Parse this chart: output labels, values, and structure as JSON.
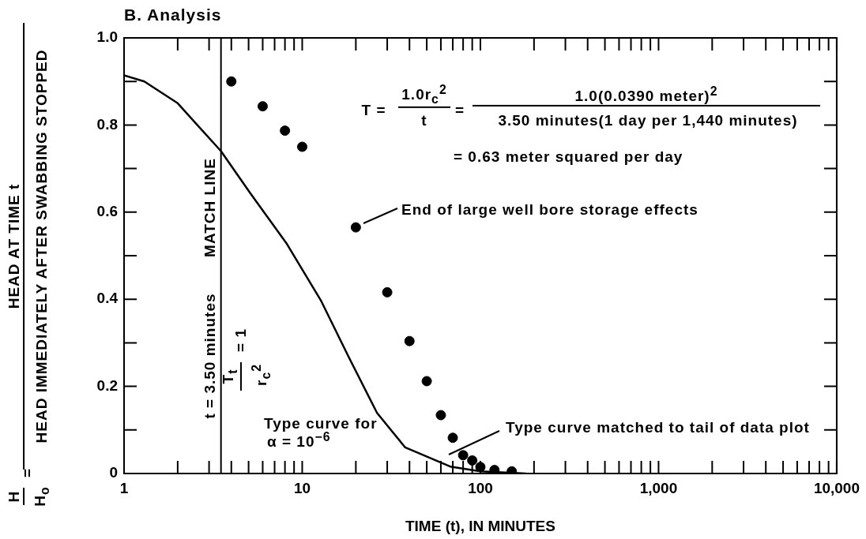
{
  "chart_data": {
    "type": "scatter",
    "title": "B. Analysis",
    "xlabel": "TIME (t), IN MINUTES",
    "log": "x",
    "grid": false,
    "legend": false,
    "xlim": [
      1,
      10000
    ],
    "xticks": [
      1,
      {
        "value": 2,
        "label": null
      },
      {
        "value": 3,
        "label": null
      },
      {
        "value": 4,
        "label": null
      },
      {
        "value": 5,
        "label": null
      },
      {
        "value": 6,
        "label": null
      },
      {
        "value": 7,
        "label": null
      },
      {
        "value": 8,
        "label": null
      },
      {
        "value": 9,
        "label": null
      },
      10,
      {
        "value": 20,
        "label": null
      },
      {
        "value": 30,
        "label": null
      },
      {
        "value": 40,
        "label": null
      },
      {
        "value": 50,
        "label": null
      },
      {
        "value": 60,
        "label": null
      },
      {
        "value": 70,
        "label": null
      },
      {
        "value": 80,
        "label": null
      },
      {
        "value": 90,
        "label": null
      },
      100,
      {
        "value": 200,
        "label": null
      },
      {
        "value": 300,
        "label": null
      },
      {
        "value": 400,
        "label": null
      },
      {
        "value": 500,
        "label": null
      },
      {
        "value": 600,
        "label": null
      },
      {
        "value": 700,
        "label": null
      },
      {
        "value": 800,
        "label": null
      },
      {
        "value": 900,
        "label": null
      },
      {
        "value": 1000,
        "label": "1,000"
      },
      {
        "value": 2000,
        "label": null
      },
      {
        "value": 3000,
        "label": null
      },
      {
        "value": 4000,
        "label": null
      },
      {
        "value": 5000,
        "label": null
      },
      {
        "value": 6000,
        "label": null
      },
      {
        "value": 7000,
        "label": null
      },
      {
        "value": 8000,
        "label": null
      },
      {
        "value": 9000,
        "label": null
      },
      {
        "value": 10000,
        "label": "10,000"
      }
    ],
    "ylim": [
      0,
      1
    ],
    "yticks": [
      0,
      {
        "value": 0.1,
        "label": null
      },
      0.2,
      {
        "value": 0.3,
        "label": null
      },
      0.4,
      {
        "value": 0.5,
        "label": null
      },
      0.6,
      {
        "value": 0.7,
        "label": null
      },
      0.8,
      {
        "value": 0.9,
        "label": null
      },
      {
        "value": 1,
        "label": "1.0"
      }
    ],
    "series": [
      {
        "type": "line",
        "color": "#000000",
        "marker": "none",
        "line_style": "solid",
        "x": [
          1,
          1.3,
          2,
          3.5,
          5.1,
          8.2,
          12.7,
          18.2,
          26.3,
          37.8,
          67.7,
          100,
          180
        ],
        "values": [
          0.914,
          0.9,
          0.85,
          0.74,
          0.644,
          0.527,
          0.398,
          0.268,
          0.139,
          0.06,
          0.016,
          0.005,
          0
        ]
      },
      {
        "color": "#000000",
        "marker": "circle",
        "x": [
          4,
          6,
          8,
          10,
          20,
          30,
          40,
          50,
          60,
          70,
          80,
          90,
          100,
          120,
          150
        ],
        "values": [
          0.9,
          0.843,
          0.787,
          0.75,
          0.565,
          0.416,
          0.304,
          0.212,
          0.134,
          0.082,
          0.042,
          0.03,
          0.015,
          0.008,
          0.005
        ]
      }
    ],
    "ref_lines": [
      {
        "axis": "x",
        "value": 3.5,
        "label": "MATCH LINE",
        "color": "#000000",
        "line_style": "solid"
      }
    ],
    "annotations": [
      "T =",
      "1.0r$_{c}$$^{2}$",
      "t",
      "=",
      "1.0(0.0390 meter)$^{2}$",
      "3.50 minutes(1 day per 1,440 minutes)",
      "= 0.63 meter squared per day",
      "End of large well bore storage effects",
      "Type curve matched to tail of data plot",
      "Type curve for",
      "α = 10$^{−6}$",
      "t = 3.50 minutes",
      "T$_{t}$",
      "r$_{c}$$^{2}$",
      "= 1",
      "H",
      "H$_{o}$",
      "=",
      "HEAD AT TIME t",
      "HEAD IMMEDIATELY AFTER SWABBING STOPPED"
    ]
  }
}
